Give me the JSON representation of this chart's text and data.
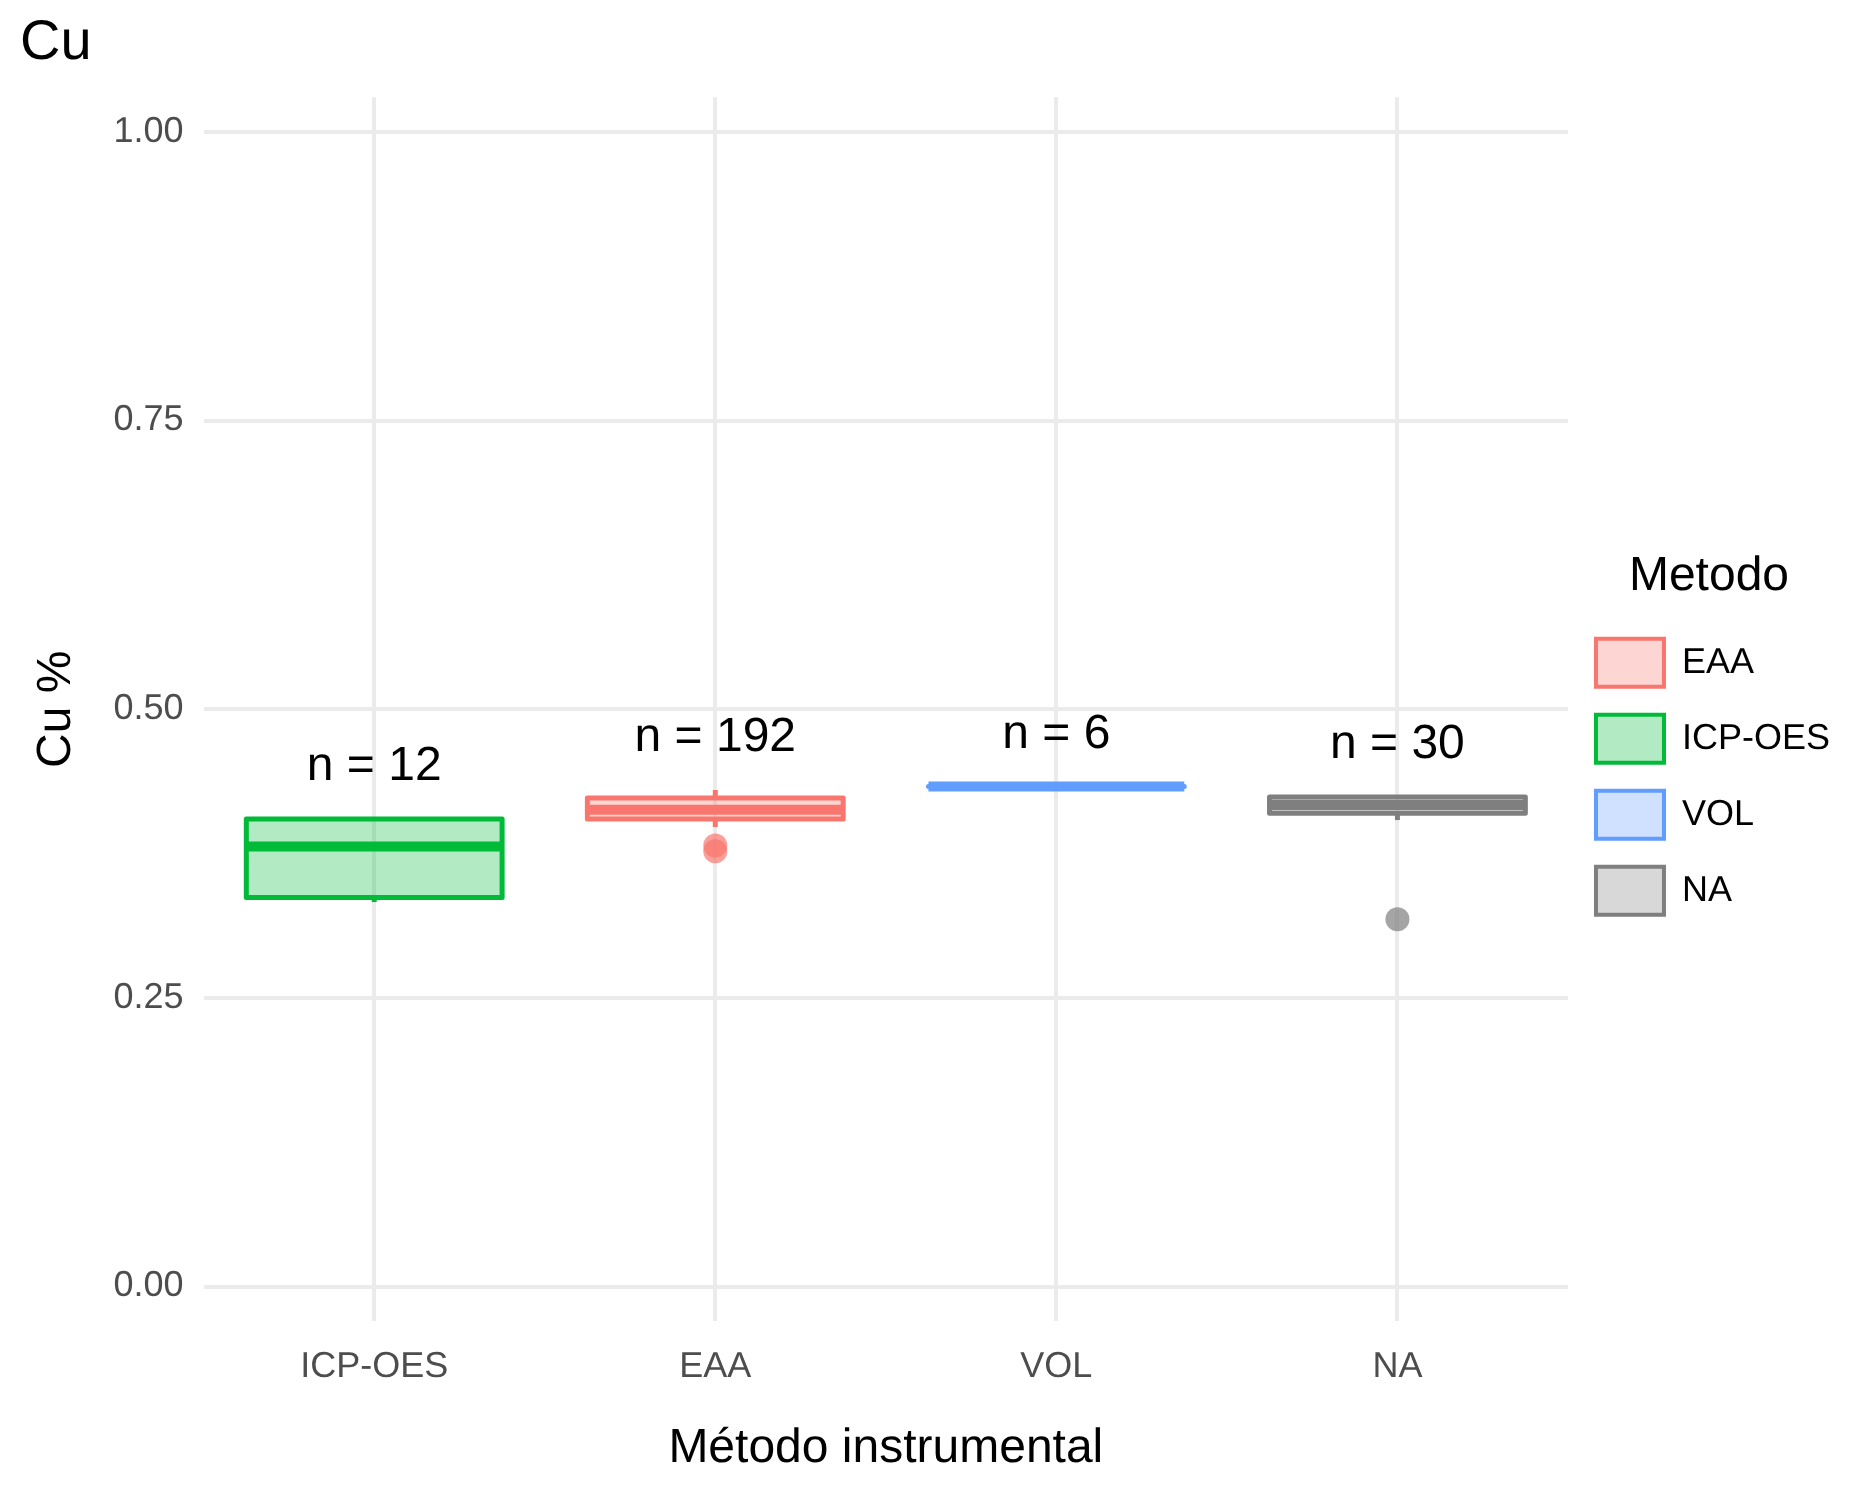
{
  "chart_data": {
    "type": "box",
    "title": "Cu",
    "xlabel": "Método instrumental",
    "ylabel": "Cu %",
    "legend_title": "Metodo",
    "categories": [
      "ICP-OES",
      "EAA",
      "VOL",
      "NA"
    ],
    "series": [
      {
        "name": "EAA",
        "color": "#f8766d",
        "boxes": [
          null,
          {
            "low": 0.398,
            "q1": 0.405,
            "median": 0.413,
            "q3": 0.423,
            "high": 0.43,
            "outliers": [
              0.382,
              0.377
            ]
          },
          null,
          null
        ]
      },
      {
        "name": "ICP-OES",
        "color": "#00ba38",
        "boxes": [
          {
            "low": 0.333,
            "q1": 0.337,
            "median": 0.381,
            "q3": 0.405,
            "high": 0.405
          },
          null,
          null,
          null
        ]
      },
      {
        "name": "VOL",
        "color": "#619cff",
        "boxes": [
          null,
          null,
          {
            "low": 0.433,
            "q1": 0.433,
            "median": 0.433,
            "q3": 0.433,
            "high": 0.433
          },
          null
        ]
      },
      {
        "name": "NA",
        "color": "#7f7f7f",
        "boxes": [
          null,
          null,
          null,
          {
            "low": 0.404,
            "q1": 0.41,
            "median": 0.417,
            "q3": 0.424,
            "high": 0.424,
            "outliers": [
              0.318
            ]
          }
        ]
      }
    ],
    "annotations": [
      "n = 12",
      "n = 192",
      "n = 6",
      "n = 30"
    ],
    "ylim": [
      -0.03,
      1.03
    ],
    "yticks": [
      {
        "value": 0,
        "label": "0.00"
      },
      0.25,
      {
        "value": 0.5,
        "label": "0.50"
      },
      0.75,
      {
        "value": 1,
        "label": "1.00"
      }
    ],
    "grid": true,
    "legend": "right"
  }
}
